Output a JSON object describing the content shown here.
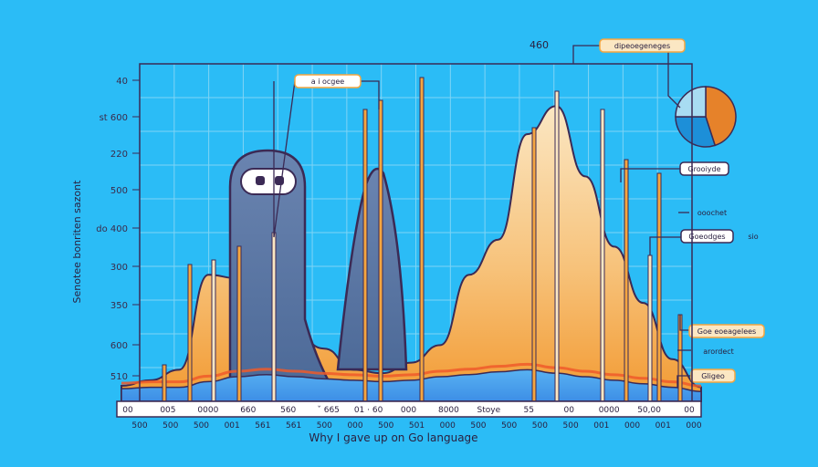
{
  "chart_data": {
    "type": "area",
    "title": "Why I gave up on Go language",
    "ylabel": "Senotee bonriten sazont",
    "top_label": "460",
    "yticks": [
      "40",
      "st 600",
      "220",
      "500",
      "do 400",
      "300",
      "350",
      "600",
      "510"
    ],
    "xticks_upper": [
      "00",
      "005",
      "0000",
      "660",
      "560",
      "ˇ 665",
      "01 · 60",
      "000",
      "8000",
      "Stoye",
      "55",
      "00",
      "0000",
      "50,00",
      "00"
    ],
    "xticks_lower": [
      "500",
      "500",
      "500",
      "001",
      "561",
      "561",
      "500",
      "000",
      "500",
      "501",
      "000",
      "500",
      "500",
      "500",
      "500",
      "001",
      "000",
      "001",
      "000"
    ],
    "series": [
      {
        "color": "#4da8f0",
        "values": [
          18,
          20,
          20,
          28,
          35,
          38,
          35,
          32,
          30,
          28,
          30,
          35,
          38,
          42,
          45,
          40,
          35,
          30,
          25,
          20,
          14
        ]
      },
      {
        "color": "#f5a640",
        "values": [
          22,
          30,
          45,
          180,
          175,
          140,
          95,
          75,
          45,
          40,
          55,
          80,
          180,
          230,
          380,
          420,
          320,
          220,
          140,
          60,
          20
        ]
      }
    ],
    "annotations": [
      "a i ocgee",
      "dipeoegeneges",
      "Grooiyde",
      "ooochet",
      "Goeodges",
      "sio",
      "Goe eoeagelees",
      "arordect",
      "Gligeo"
    ],
    "colors": {
      "background": "#2bbcf6",
      "grid": "#7fd4f5",
      "orange": "#f5a640",
      "blue": "#4da8f0",
      "ghost": "#5e7ca8",
      "outline": "#3b2a55",
      "cream": "#fbe7c3"
    },
    "pie": [
      {
        "value": 45,
        "color": "#e6822a"
      },
      {
        "value": 30,
        "color": "#1d8fd8"
      },
      {
        "value": 25,
        "color": "#a8dcf2"
      }
    ]
  }
}
